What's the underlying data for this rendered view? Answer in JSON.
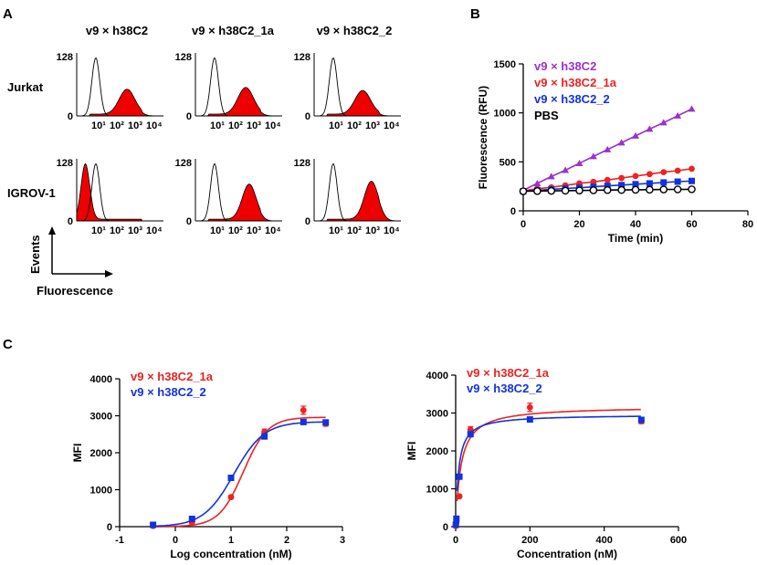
{
  "panel_labels": {
    "a": "A",
    "b": "B",
    "c": "C"
  },
  "panel_a": {
    "column_headers": [
      "v9 × h38C2",
      "v9 × h38C2_1a",
      "v9 × h38C2_2"
    ],
    "row_labels": [
      "Jurkat",
      "IGROV-1"
    ],
    "y_tick_max": "128",
    "y_tick_min": "0",
    "x_tick_labels": [
      "10¹",
      "10²",
      "10³",
      "10⁴"
    ],
    "axis_events": "Events",
    "axis_fluorescence": "Fluorescence",
    "colors": {
      "fill": "#ee0000",
      "outline": "#000000"
    }
  },
  "chart_data": [
    {
      "id": "B",
      "type": "line",
      "xlabel": "Time  (min)",
      "ylabel": "Fluorescence (RFU)",
      "xlim": [
        0,
        80
      ],
      "ylim": [
        0,
        1500
      ],
      "xticks": [
        0,
        20,
        40,
        60,
        80
      ],
      "yticks": [
        0,
        500,
        1000,
        1500
      ],
      "x": [
        0,
        5,
        10,
        15,
        20,
        25,
        30,
        35,
        40,
        45,
        50,
        55,
        60
      ],
      "series": [
        {
          "name": "v9 × h38C2",
          "color": "#9933cc",
          "marker": "triangle",
          "values": [
            210,
            280,
            350,
            415,
            485,
            555,
            625,
            695,
            765,
            835,
            900,
            970,
            1040
          ]
        },
        {
          "name": "v9 × h38C2_1a",
          "color": "#ee2222",
          "marker": "circle",
          "values": [
            205,
            225,
            240,
            260,
            280,
            295,
            315,
            335,
            355,
            375,
            395,
            410,
            430
          ]
        },
        {
          "name": "v9 × h38C2_2",
          "color": "#1133dd",
          "marker": "square",
          "values": [
            200,
            210,
            220,
            228,
            236,
            245,
            255,
            263,
            272,
            280,
            290,
            298,
            305
          ]
        },
        {
          "name": "PBS",
          "color": "#000000",
          "marker": "open-circle",
          "values": [
            200,
            202,
            204,
            206,
            208,
            210,
            212,
            213,
            215,
            216,
            218,
            219,
            220
          ]
        }
      ]
    },
    {
      "id": "C-left",
      "type": "scatter",
      "xlabel": "Log concentration (nM)",
      "ylabel": "MFI",
      "xlim": [
        -1,
        3
      ],
      "ylim": [
        0,
        4000
      ],
      "xticks": [
        -1,
        0,
        1,
        2,
        3
      ],
      "yticks": [
        0,
        1000,
        2000,
        3000,
        4000
      ],
      "series": [
        {
          "name": "v9 × h38C2_1a",
          "color": "#ee2222",
          "x": [
            -0.4,
            0.3,
            1.0,
            1.6,
            2.3,
            2.7
          ],
          "values": [
            20,
            110,
            800,
            2560,
            3150,
            2780
          ],
          "errors": [
            20,
            30,
            40,
            80,
            110,
            60
          ]
        },
        {
          "name": "v9 × h38C2_2",
          "color": "#1133dd",
          "x": [
            -0.4,
            0.3,
            1.0,
            1.6,
            2.3,
            2.7
          ],
          "values": [
            50,
            210,
            1320,
            2440,
            2830,
            2820
          ],
          "errors": [
            20,
            30,
            40,
            60,
            50,
            40
          ]
        }
      ]
    },
    {
      "id": "C-right",
      "type": "scatter",
      "xlabel": "Concentration (nM)",
      "ylabel": "MFI",
      "xlim": [
        0,
        600
      ],
      "ylim": [
        0,
        4000
      ],
      "xticks": [
        0,
        200,
        400,
        600
      ],
      "yticks": [
        0,
        1000,
        2000,
        3000,
        4000
      ],
      "series": [
        {
          "name": "v9 × h38C2_1a",
          "color": "#ee2222",
          "x": [
            0.4,
            2,
            10,
            40,
            200,
            500
          ],
          "values": [
            20,
            110,
            800,
            2560,
            3150,
            2780
          ],
          "errors": [
            20,
            30,
            40,
            80,
            110,
            60
          ]
        },
        {
          "name": "v9 × h38C2_2",
          "color": "#1133dd",
          "x": [
            0.4,
            2,
            10,
            40,
            200,
            500
          ],
          "values": [
            50,
            210,
            1320,
            2440,
            2830,
            2820
          ],
          "errors": [
            20,
            30,
            40,
            60,
            50,
            40
          ]
        }
      ]
    }
  ]
}
